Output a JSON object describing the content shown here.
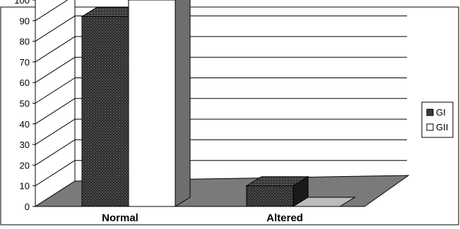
{
  "chart_data": {
    "type": "bar",
    "title": "",
    "xlabel": "",
    "ylabel": "",
    "ylim": [
      0,
      100
    ],
    "ytick_step": 10,
    "yticks": [
      "0",
      "10",
      "20",
      "30",
      "40",
      "50",
      "60",
      "70",
      "80",
      "90",
      "100"
    ],
    "categories": [
      "Normal",
      "Altered"
    ],
    "series": [
      {
        "name": "GI",
        "values": [
          92,
          10
        ],
        "front_color": "#2b2b2b",
        "top_color": "#3a3a3a",
        "side_color": "#1a1a1a"
      },
      {
        "name": "GII",
        "values": [
          100,
          0
        ],
        "front_color": "#ffffff",
        "top_color": "#bdbdbd",
        "side_color": "#6e6e6e"
      }
    ],
    "grid": true,
    "legend_position": "right",
    "colors": {
      "floor": "#7a7a7a",
      "wall": "#ffffff",
      "grid": "#000000"
    }
  }
}
